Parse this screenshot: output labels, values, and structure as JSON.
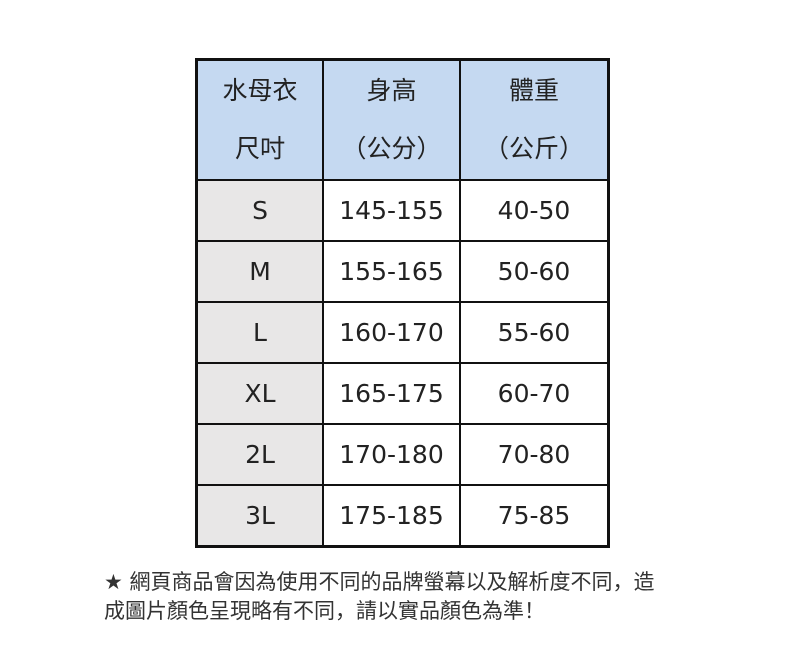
{
  "headers": [
    {
      "line1": "水母衣",
      "line2": "尺吋"
    },
    {
      "line1": "身高",
      "line2": "（公分）"
    },
    {
      "line1": "體重",
      "line2": "（公斤）"
    }
  ],
  "rows": [
    {
      "size": "S",
      "height": "145-155",
      "weight": "40-50"
    },
    {
      "size": "M",
      "height": "155-165",
      "weight": "50-60"
    },
    {
      "size": "L",
      "height": "160-170",
      "weight": "55-60"
    },
    {
      "size": "XL",
      "height": "165-175",
      "weight": "60-70"
    },
    {
      "size": "2L",
      "height": "170-180",
      "weight": "70-80"
    },
    {
      "size": "3L",
      "height": "175-185",
      "weight": "75-85"
    }
  ],
  "note": {
    "star": "★",
    "line1": " 網頁商品會因為使用不同的品牌螢幕以及解析度不同，造",
    "line2": "成圖片顏色呈現略有不同，請以實品顏色為準！"
  },
  "colors": {
    "header_bg": "#c5d9f1",
    "size_col_bg": "#e8e7e7",
    "border": "#111111"
  }
}
